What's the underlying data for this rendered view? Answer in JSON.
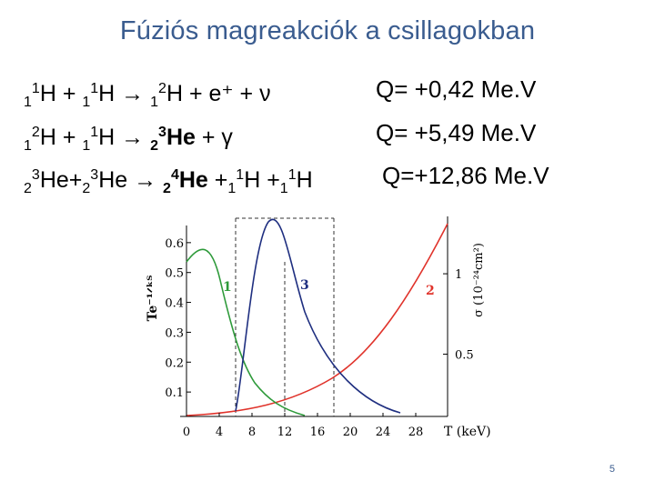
{
  "title": "Fúziós magreakciók a csillagokban",
  "reactions": [
    {
      "parts": [
        {
          "t": "sub",
          "v": "1"
        },
        {
          "t": "sup",
          "v": "1"
        },
        {
          "t": "txt",
          "v": "H + "
        },
        {
          "t": "sub",
          "v": "1"
        },
        {
          "t": "sup",
          "v": "1"
        },
        {
          "t": "txt",
          "v": "H  →  "
        },
        {
          "t": "sub",
          "v": "1"
        },
        {
          "t": "sup",
          "v": "2"
        },
        {
          "t": "txt",
          "v": "H + e⁺ + ν"
        }
      ],
      "q": "Q= +0,42 Me.V"
    },
    {
      "parts": [
        {
          "t": "sub",
          "v": "1"
        },
        {
          "t": "sup",
          "v": "2"
        },
        {
          "t": "txt",
          "v": "H + "
        },
        {
          "t": "sub",
          "v": "1"
        },
        {
          "t": "sup",
          "v": "1"
        },
        {
          "t": "txt",
          "v": "H  →  "
        },
        {
          "t": "bsub",
          "v": "2"
        },
        {
          "t": "bsup",
          "v": "3"
        },
        {
          "t": "btxt",
          "v": "He"
        },
        {
          "t": "txt",
          "v": " + γ"
        }
      ],
      "q": "Q= +5,49 Me.V"
    },
    {
      "parts": [
        {
          "t": "sub",
          "v": "2"
        },
        {
          "t": "sup",
          "v": "3"
        },
        {
          "t": "txt",
          "v": "He+"
        },
        {
          "t": "sub",
          "v": "2"
        },
        {
          "t": "sup",
          "v": "3"
        },
        {
          "t": "txt",
          "v": "He → "
        },
        {
          "t": "bsub",
          "v": "2"
        },
        {
          "t": "bsup",
          "v": "4"
        },
        {
          "t": "btxt",
          "v": "He"
        },
        {
          "t": "txt",
          "v": " +"
        },
        {
          "t": "sub",
          "v": "1"
        },
        {
          "t": "sup",
          "v": "1"
        },
        {
          "t": "txt",
          "v": "H +"
        },
        {
          "t": "sub",
          "v": "1"
        },
        {
          "t": "sup",
          "v": "1"
        },
        {
          "t": "txt",
          "v": "H"
        }
      ],
      "q": "Q=+12,86 Me.V"
    }
  ],
  "figure": {
    "left_axis_label": "Te⁻¹ᐟᵏᵀ",
    "right_axis_label": "σ  (10⁻²⁴cm²)",
    "x_label": "T (keV)",
    "x_ticks": [
      0,
      4,
      8,
      12,
      16,
      20,
      24,
      28
    ],
    "left_ticks": [
      0.1,
      0.2,
      0.3,
      0.4,
      0.5,
      0.6
    ],
    "right_ticks": [
      0.5,
      1
    ],
    "curve_labels": [
      "1",
      "2",
      "3"
    ],
    "colors": {
      "curve1": "#2e9a3a",
      "curve2": "#e0332b",
      "curve3": "#1f2f80"
    }
  },
  "page_number": "5"
}
